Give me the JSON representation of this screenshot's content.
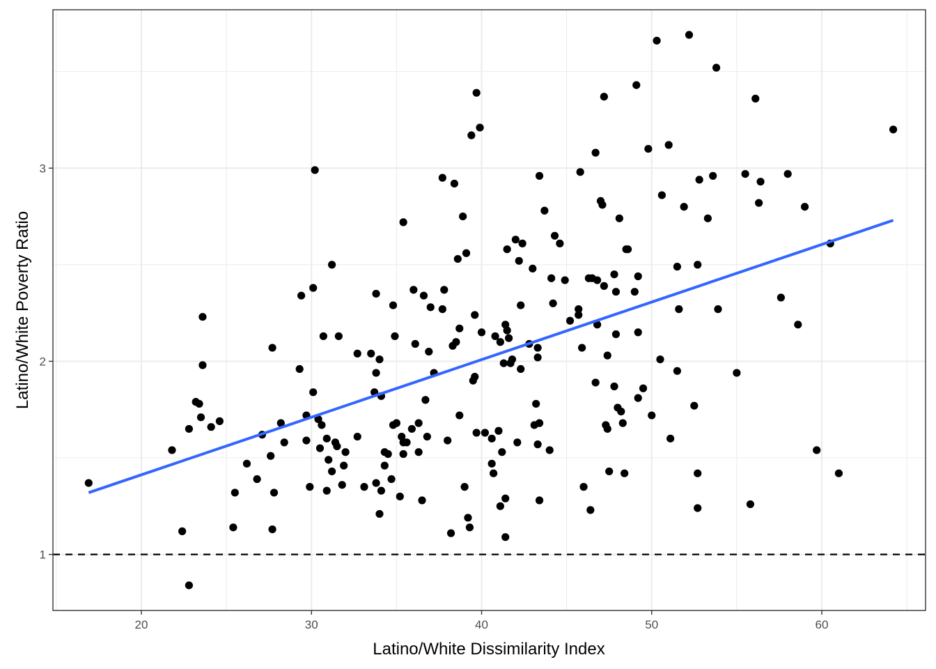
{
  "chart_data": {
    "type": "scatter",
    "title": "",
    "xlabel": "Latino/White Dissimilarity Index",
    "ylabel": "Latino/White Poverty Ratio",
    "xlim": [
      14.8,
      66.1
    ],
    "ylim": [
      0.71,
      3.82
    ],
    "x_ticks": [
      20,
      30,
      40,
      50,
      60
    ],
    "y_ticks": [
      1,
      2,
      3
    ],
    "x_tick_labels": [
      "20",
      "30",
      "40",
      "50",
      "60"
    ],
    "y_tick_labels": [
      "1",
      "2",
      "3"
    ],
    "grid": true,
    "reference_line": {
      "y": 1,
      "style": "dashed",
      "color": "#000000"
    },
    "trend_line": {
      "x": [
        16.9,
        64.2
      ],
      "y": [
        1.32,
        2.73
      ],
      "color": "#3366FF"
    },
    "point_color": "#000000",
    "points": [
      [
        16.9,
        1.37
      ],
      [
        21.8,
        1.54
      ],
      [
        22.4,
        1.12
      ],
      [
        22.8,
        0.84
      ],
      [
        22.8,
        1.65
      ],
      [
        23.2,
        1.79
      ],
      [
        23.4,
        1.78
      ],
      [
        23.5,
        1.71
      ],
      [
        23.6,
        2.23
      ],
      [
        23.6,
        1.98
      ],
      [
        24.1,
        1.66
      ],
      [
        24.6,
        1.69
      ],
      [
        25.4,
        1.14
      ],
      [
        25.5,
        1.32
      ],
      [
        26.2,
        1.47
      ],
      [
        26.8,
        1.39
      ],
      [
        27.1,
        1.62
      ],
      [
        27.6,
        1.51
      ],
      [
        27.7,
        1.13
      ],
      [
        27.7,
        2.07
      ],
      [
        27.8,
        1.32
      ],
      [
        28.2,
        1.68
      ],
      [
        28.4,
        1.58
      ],
      [
        29.3,
        1.96
      ],
      [
        29.4,
        2.34
      ],
      [
        29.7,
        1.72
      ],
      [
        29.7,
        1.59
      ],
      [
        29.9,
        1.35
      ],
      [
        30.1,
        2.38
      ],
      [
        30.1,
        1.84
      ],
      [
        30.2,
        2.99
      ],
      [
        30.4,
        1.7
      ],
      [
        30.5,
        1.55
      ],
      [
        30.6,
        1.67
      ],
      [
        30.7,
        2.13
      ],
      [
        30.9,
        1.6
      ],
      [
        30.9,
        1.33
      ],
      [
        31.0,
        1.49
      ],
      [
        31.2,
        1.43
      ],
      [
        31.2,
        2.5
      ],
      [
        31.4,
        1.58
      ],
      [
        31.5,
        1.56
      ],
      [
        31.6,
        2.13
      ],
      [
        31.8,
        1.36
      ],
      [
        31.9,
        1.46
      ],
      [
        32.0,
        1.53
      ],
      [
        32.7,
        2.04
      ],
      [
        32.7,
        1.61
      ],
      [
        33.1,
        1.35
      ],
      [
        33.5,
        2.04
      ],
      [
        33.7,
        1.84
      ],
      [
        33.8,
        1.37
      ],
      [
        33.8,
        2.35
      ],
      [
        33.8,
        1.94
      ],
      [
        34.0,
        1.21
      ],
      [
        34.0,
        2.01
      ],
      [
        34.1,
        1.33
      ],
      [
        34.1,
        1.82
      ],
      [
        34.3,
        1.53
      ],
      [
        34.3,
        1.46
      ],
      [
        34.5,
        1.52
      ],
      [
        34.7,
        1.39
      ],
      [
        34.8,
        1.67
      ],
      [
        34.8,
        2.29
      ],
      [
        34.9,
        2.13
      ],
      [
        35.0,
        1.68
      ],
      [
        35.2,
        1.3
      ],
      [
        35.3,
        1.61
      ],
      [
        35.4,
        1.52
      ],
      [
        35.4,
        1.58
      ],
      [
        35.4,
        2.72
      ],
      [
        35.6,
        1.58
      ],
      [
        35.9,
        1.65
      ],
      [
        36.0,
        2.37
      ],
      [
        36.1,
        2.09
      ],
      [
        36.3,
        1.53
      ],
      [
        36.3,
        1.68
      ],
      [
        36.5,
        1.28
      ],
      [
        36.6,
        2.34
      ],
      [
        36.7,
        1.8
      ],
      [
        36.8,
        1.61
      ],
      [
        36.9,
        2.05
      ],
      [
        37.0,
        2.28
      ],
      [
        37.2,
        1.94
      ],
      [
        37.7,
        2.27
      ],
      [
        37.7,
        2.95
      ],
      [
        37.8,
        2.37
      ],
      [
        38.0,
        1.59
      ],
      [
        38.2,
        1.11
      ],
      [
        38.3,
        2.08
      ],
      [
        38.4,
        2.92
      ],
      [
        38.5,
        2.1
      ],
      [
        38.6,
        2.53
      ],
      [
        38.7,
        2.17
      ],
      [
        38.7,
        1.72
      ],
      [
        38.9,
        2.75
      ],
      [
        39.0,
        1.35
      ],
      [
        39.1,
        2.56
      ],
      [
        39.2,
        1.19
      ],
      [
        39.3,
        1.14
      ],
      [
        39.4,
        3.17
      ],
      [
        39.5,
        1.9
      ],
      [
        39.6,
        1.92
      ],
      [
        39.6,
        2.24
      ],
      [
        39.7,
        3.39
      ],
      [
        39.7,
        1.63
      ],
      [
        39.9,
        3.21
      ],
      [
        40.0,
        2.15
      ],
      [
        40.2,
        1.63
      ],
      [
        40.6,
        1.47
      ],
      [
        40.6,
        1.6
      ],
      [
        40.7,
        1.42
      ],
      [
        40.8,
        2.13
      ],
      [
        41.0,
        1.64
      ],
      [
        41.1,
        2.1
      ],
      [
        41.1,
        1.25
      ],
      [
        41.2,
        1.53
      ],
      [
        41.3,
        1.99
      ],
      [
        41.4,
        2.19
      ],
      [
        41.4,
        1.09
      ],
      [
        41.4,
        1.29
      ],
      [
        41.5,
        2.58
      ],
      [
        41.5,
        2.16
      ],
      [
        41.6,
        2.12
      ],
      [
        41.7,
        1.99
      ],
      [
        41.8,
        2.01
      ],
      [
        42.0,
        2.63
      ],
      [
        42.1,
        1.58
      ],
      [
        42.2,
        2.52
      ],
      [
        42.3,
        1.96
      ],
      [
        42.3,
        2.29
      ],
      [
        42.4,
        2.61
      ],
      [
        42.8,
        2.09
      ],
      [
        43.0,
        2.48
      ],
      [
        43.1,
        1.67
      ],
      [
        43.2,
        1.78
      ],
      [
        43.3,
        2.02
      ],
      [
        43.3,
        1.57
      ],
      [
        43.3,
        2.07
      ],
      [
        43.4,
        1.28
      ],
      [
        43.4,
        1.68
      ],
      [
        43.4,
        2.96
      ],
      [
        43.7,
        2.78
      ],
      [
        44.0,
        1.54
      ],
      [
        44.1,
        2.43
      ],
      [
        44.2,
        2.3
      ],
      [
        44.3,
        2.65
      ],
      [
        44.6,
        2.61
      ],
      [
        44.9,
        2.42
      ],
      [
        45.2,
        2.21
      ],
      [
        45.7,
        2.27
      ],
      [
        45.7,
        2.24
      ],
      [
        45.8,
        2.98
      ],
      [
        45.9,
        2.07
      ],
      [
        46.0,
        1.35
      ],
      [
        46.3,
        2.43
      ],
      [
        46.4,
        1.23
      ],
      [
        46.5,
        2.43
      ],
      [
        46.7,
        1.89
      ],
      [
        46.7,
        3.08
      ],
      [
        46.8,
        2.42
      ],
      [
        46.8,
        2.19
      ],
      [
        47.0,
        2.83
      ],
      [
        47.1,
        2.81
      ],
      [
        47.2,
        2.39
      ],
      [
        47.2,
        3.37
      ],
      [
        47.3,
        1.67
      ],
      [
        47.4,
        2.03
      ],
      [
        47.4,
        1.65
      ],
      [
        47.5,
        1.43
      ],
      [
        47.8,
        2.45
      ],
      [
        47.8,
        1.87
      ],
      [
        47.9,
        2.36
      ],
      [
        47.9,
        2.14
      ],
      [
        48.0,
        1.76
      ],
      [
        48.1,
        2.74
      ],
      [
        48.2,
        1.74
      ],
      [
        48.3,
        1.68
      ],
      [
        48.4,
        1.42
      ],
      [
        48.5,
        2.58
      ],
      [
        48.6,
        2.58
      ],
      [
        49.0,
        2.36
      ],
      [
        49.1,
        3.43
      ],
      [
        49.2,
        2.44
      ],
      [
        49.2,
        1.81
      ],
      [
        49.2,
        2.15
      ],
      [
        49.5,
        1.86
      ],
      [
        49.8,
        3.1
      ],
      [
        50.0,
        1.72
      ],
      [
        50.3,
        3.66
      ],
      [
        50.5,
        2.01
      ],
      [
        50.6,
        2.86
      ],
      [
        51.0,
        3.12
      ],
      [
        51.1,
        1.6
      ],
      [
        51.5,
        1.95
      ],
      [
        51.5,
        2.49
      ],
      [
        51.6,
        2.27
      ],
      [
        51.9,
        2.8
      ],
      [
        52.2,
        3.69
      ],
      [
        52.5,
        1.77
      ],
      [
        52.7,
        2.5
      ],
      [
        52.7,
        1.42
      ],
      [
        52.7,
        1.24
      ],
      [
        52.8,
        2.94
      ],
      [
        53.3,
        2.74
      ],
      [
        53.6,
        2.96
      ],
      [
        53.8,
        3.52
      ],
      [
        53.9,
        2.27
      ],
      [
        55.0,
        1.94
      ],
      [
        55.5,
        2.97
      ],
      [
        55.8,
        1.26
      ],
      [
        56.1,
        3.36
      ],
      [
        56.3,
        2.82
      ],
      [
        56.4,
        2.93
      ],
      [
        58.0,
        2.97
      ],
      [
        57.6,
        2.33
      ],
      [
        58.6,
        2.19
      ],
      [
        59.0,
        2.8
      ],
      [
        59.7,
        1.54
      ],
      [
        60.5,
        2.61
      ],
      [
        61.0,
        1.42
      ],
      [
        64.2,
        3.2
      ]
    ]
  }
}
